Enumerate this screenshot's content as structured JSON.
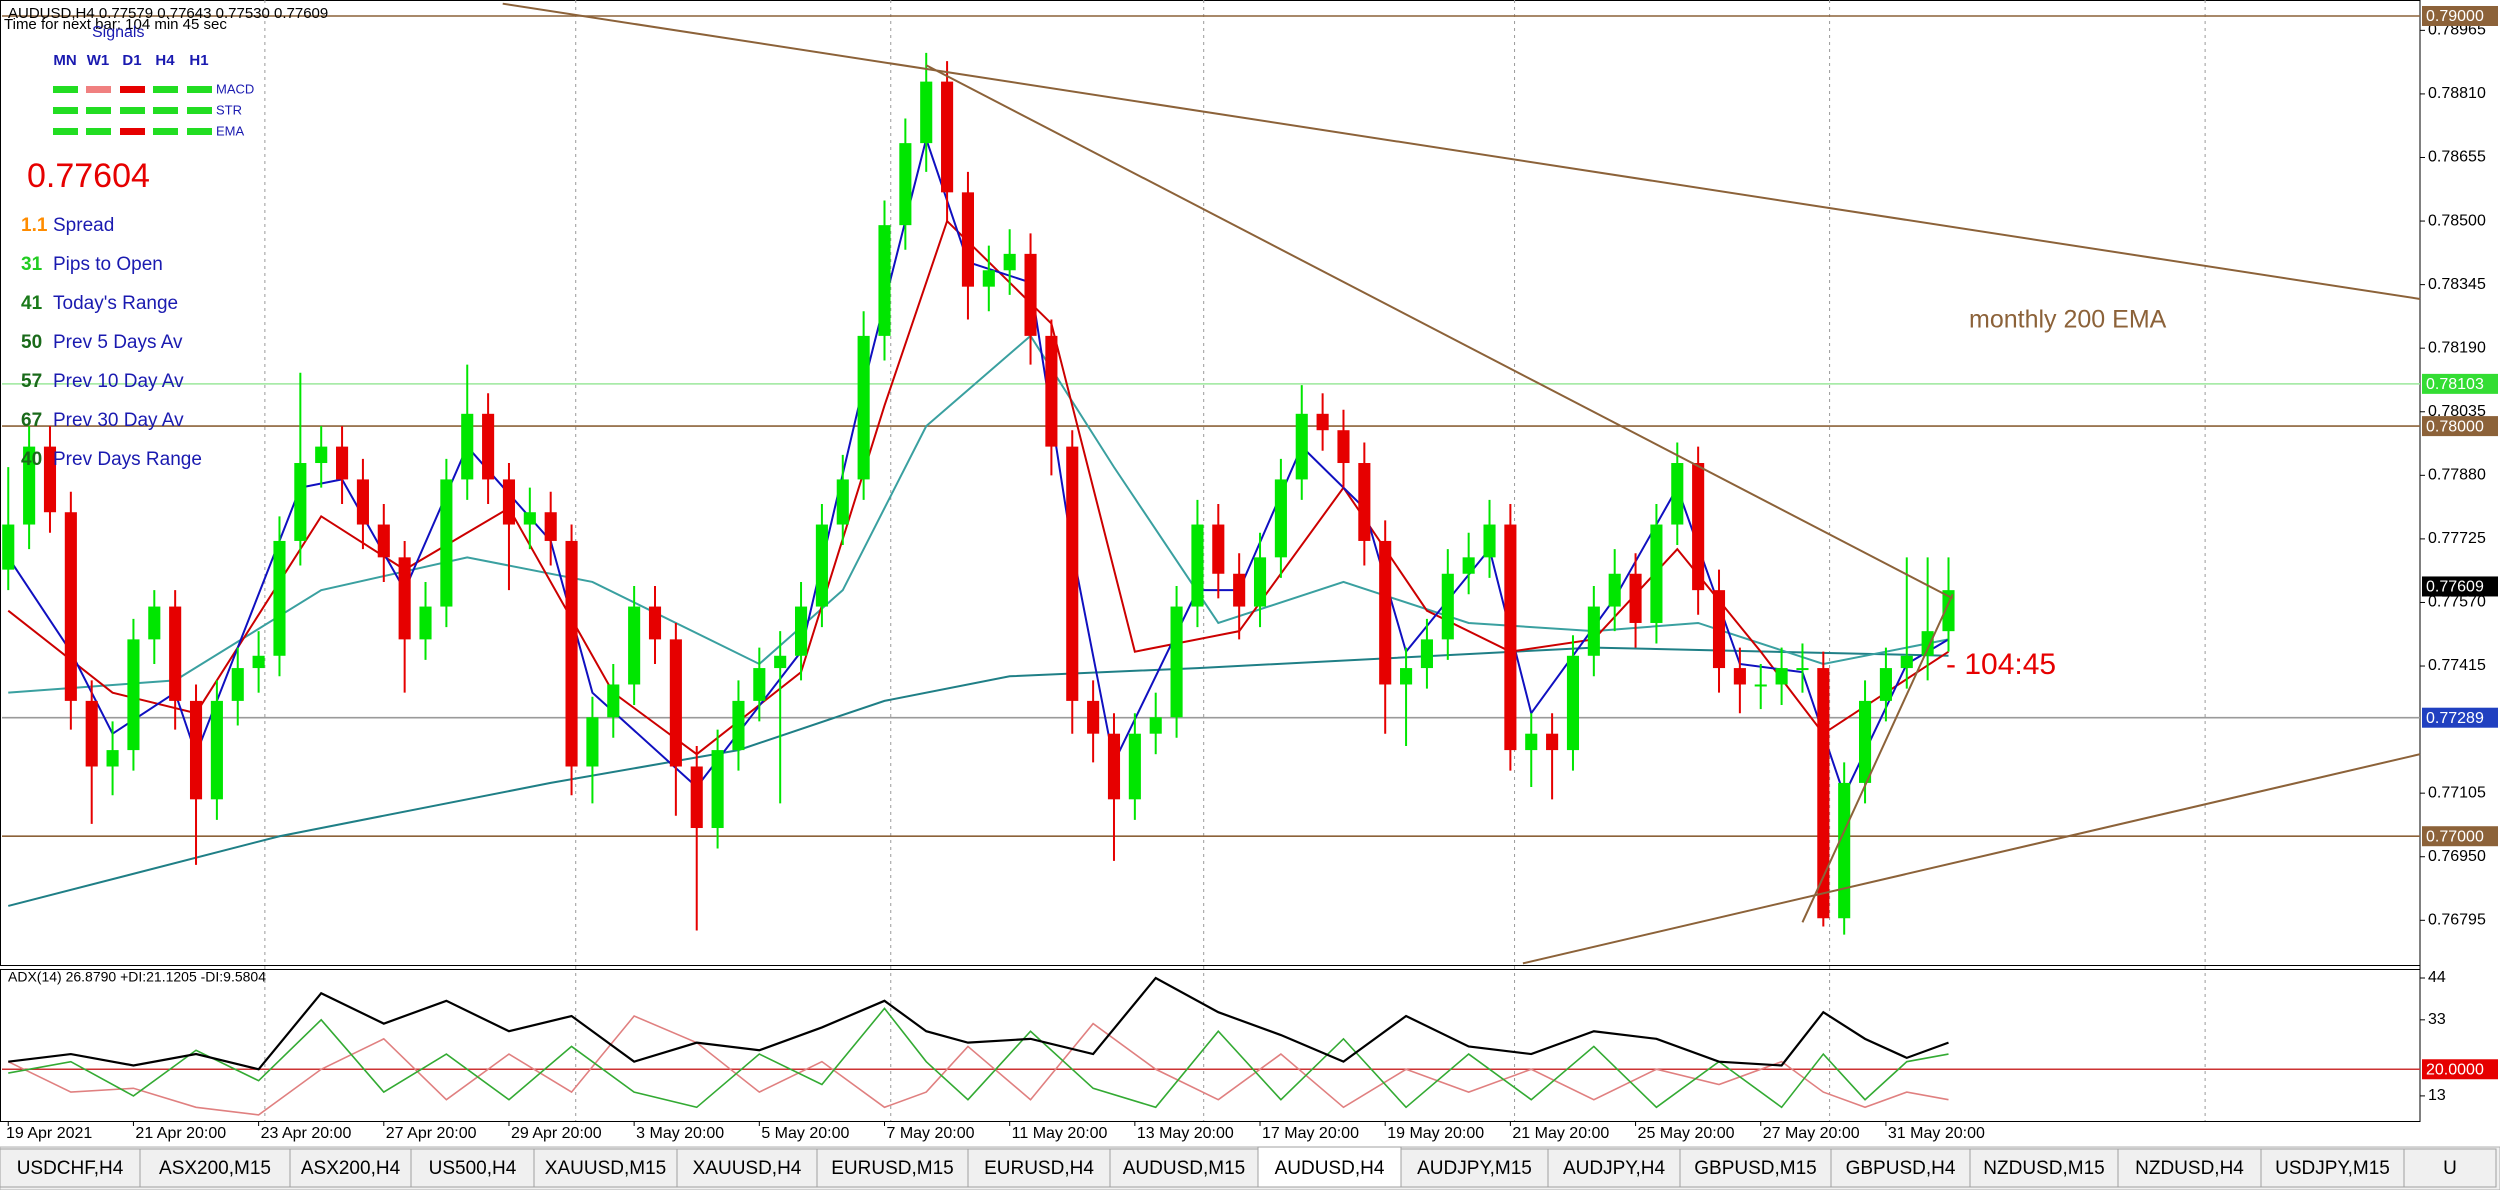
{
  "header": {
    "symbol_line": "AUDUSD,H4  0.77579 0.77643 0.77530 0.77609",
    "timer": "Time for next bar: 104 min 45 sec"
  },
  "panel": {
    "title": "Signals",
    "columns": [
      "MN",
      "W1",
      "D1",
      "H4",
      "H1"
    ],
    "rows": [
      {
        "name": "MACD",
        "colors": [
          "#22dd22",
          "#f08080",
          "#e60000",
          "#22dd22",
          "#22dd22"
        ]
      },
      {
        "name": "STR",
        "colors": [
          "#22dd22",
          "#22dd22",
          "#22dd22",
          "#22dd22",
          "#22dd22"
        ]
      },
      {
        "name": "EMA",
        "colors": [
          "#22dd22",
          "#22dd22",
          "#e60000",
          "#22dd22",
          "#22dd22"
        ]
      }
    ],
    "price": 0.77604,
    "price_color": "#e60000",
    "label_color": "#1a1ab0",
    "stats": [
      {
        "value": 1.1,
        "label": "Spread",
        "color": "#ff8c00"
      },
      {
        "value": 31,
        "label": "Pips to Open",
        "color": "#22cc22"
      },
      {
        "value": 41,
        "label": "Today's Range",
        "color": "#1a7a1a"
      },
      {
        "value": 50,
        "label": "Prev 5 Days Av",
        "color": "#1a6a1a"
      },
      {
        "value": 57,
        "label": "Prev 10 Day Av",
        "color": "#1a6a1a"
      },
      {
        "value": 67,
        "label": "Prev 30 Day Av",
        "color": "#1a6a1a"
      },
      {
        "value": 40,
        "label": "Prev Days Range",
        "color": "#1a6a1a"
      }
    ]
  },
  "chart_data": [
    {
      "type": "candlestick",
      "categories": [
        "19 Apr 2021",
        null,
        null,
        null,
        null,
        null,
        "21 Apr 20:00",
        null,
        null,
        null,
        null,
        null,
        "23 Apr 20:00",
        null,
        null,
        null,
        null,
        null,
        "27 Apr 20:00",
        null,
        null,
        null,
        null,
        null,
        "29 Apr 20:00",
        null,
        null,
        null,
        null,
        null,
        "3 May 20:00",
        null,
        null,
        null,
        null,
        null,
        "5 May 20:00",
        null,
        null,
        null,
        null,
        null,
        "7 May 20:00",
        null,
        null,
        null,
        null,
        null,
        "11 May 20:00",
        null,
        null,
        null,
        null,
        null,
        "13 May 20:00",
        null,
        null,
        null,
        null,
        null,
        "17 May 20:00",
        null,
        null,
        null,
        null,
        null,
        "19 May 20:00",
        null,
        null,
        null,
        null,
        null,
        "21 May 20:00",
        null,
        null,
        null,
        null,
        null,
        "25 May 20:00",
        null,
        null,
        null,
        null,
        null,
        "27 May 20:00",
        null,
        null,
        null,
        null,
        null,
        "31 May 20:00",
        null,
        null,
        null
      ],
      "open": [
        0.7765,
        0.7776,
        0.7795,
        0.7779,
        0.7733,
        0.7717,
        0.7721,
        0.7748,
        0.7756,
        0.7733,
        0.7709,
        0.7733,
        0.7741,
        0.7744,
        0.7772,
        0.7791,
        0.7795,
        0.7787,
        0.7776,
        0.7768,
        0.7748,
        0.7756,
        0.7787,
        0.7803,
        0.7787,
        0.7776,
        0.7779,
        0.7772,
        0.7717,
        0.7729,
        0.7737,
        0.7756,
        0.7748,
        0.7717,
        0.7702,
        0.7721,
        0.7733,
        0.7741,
        0.7744,
        0.7756,
        0.7776,
        0.7787,
        0.7822,
        0.7849,
        0.7869,
        0.7884,
        0.7857,
        0.7834,
        0.7838,
        0.7842,
        0.7822,
        0.7795,
        0.7733,
        0.7725,
        0.7709,
        0.7725,
        0.7729,
        0.7756,
        0.7776,
        0.7764,
        0.7756,
        0.7768,
        0.7787,
        0.7803,
        0.7799,
        0.7791,
        0.7772,
        0.7737,
        0.7741,
        0.7748,
        0.7764,
        0.7768,
        0.7776,
        0.7721,
        0.7725,
        0.7721,
        0.7744,
        0.7756,
        0.7764,
        0.7752,
        0.7776,
        0.7791,
        0.776,
        0.7741,
        0.7737,
        0.7737,
        0.7741,
        0.7741,
        0.768,
        0.7713,
        0.7733,
        0.7741,
        0.7744,
        0.775
      ],
      "high": [
        0.779,
        0.78,
        0.78,
        0.7784,
        0.7738,
        0.7728,
        0.7753,
        0.776,
        0.776,
        0.7737,
        0.7738,
        0.7746,
        0.775,
        0.7778,
        0.7813,
        0.78,
        0.78,
        0.7792,
        0.7781,
        0.7772,
        0.7762,
        0.7792,
        0.7815,
        0.7808,
        0.7791,
        0.7785,
        0.7784,
        0.7776,
        0.7734,
        0.7742,
        0.7761,
        0.7761,
        0.7752,
        0.7722,
        0.7726,
        0.7738,
        0.7746,
        0.775,
        0.7762,
        0.7781,
        0.7793,
        0.7828,
        0.7855,
        0.7875,
        0.7891,
        0.7889,
        0.7862,
        0.7844,
        0.7848,
        0.7847,
        0.7826,
        0.7799,
        0.7738,
        0.773,
        0.773,
        0.7735,
        0.7761,
        0.7782,
        0.7781,
        0.7769,
        0.7774,
        0.7792,
        0.781,
        0.7808,
        0.7804,
        0.7796,
        0.7777,
        0.7746,
        0.7753,
        0.777,
        0.7774,
        0.7782,
        0.7781,
        0.773,
        0.773,
        0.7749,
        0.7761,
        0.777,
        0.7769,
        0.7781,
        0.7796,
        0.7795,
        0.7765,
        0.7746,
        0.7742,
        0.7746,
        0.7747,
        0.7745,
        0.7718,
        0.7738,
        0.7746,
        0.7768,
        0.7768,
        0.7768
      ],
      "low": [
        0.776,
        0.777,
        0.7774,
        0.7726,
        0.7703,
        0.771,
        0.7716,
        0.7742,
        0.7726,
        0.7693,
        0.7704,
        0.7727,
        0.7735,
        0.7739,
        0.7766,
        0.7785,
        0.7781,
        0.777,
        0.7762,
        0.7735,
        0.7743,
        0.7751,
        0.7782,
        0.7781,
        0.776,
        0.777,
        0.7766,
        0.771,
        0.7708,
        0.7724,
        0.7732,
        0.7742,
        0.7705,
        0.7677,
        0.7697,
        0.7716,
        0.7728,
        0.7708,
        0.7738,
        0.7751,
        0.7771,
        0.7782,
        0.7816,
        0.7843,
        0.7862,
        0.785,
        0.7826,
        0.7828,
        0.7832,
        0.7815,
        0.7788,
        0.7725,
        0.7718,
        0.7694,
        0.7704,
        0.772,
        0.7724,
        0.7751,
        0.7758,
        0.7748,
        0.7751,
        0.7763,
        0.7782,
        0.7794,
        0.7785,
        0.7766,
        0.7725,
        0.7722,
        0.7736,
        0.7743,
        0.7759,
        0.7763,
        0.7716,
        0.7712,
        0.7709,
        0.7716,
        0.7739,
        0.775,
        0.7746,
        0.7747,
        0.7771,
        0.7754,
        0.7735,
        0.773,
        0.7731,
        0.7732,
        0.7735,
        0.7678,
        0.7676,
        0.7708,
        0.7728,
        0.7736,
        0.7738,
        0.7745
      ],
      "close": [
        0.7776,
        0.7795,
        0.7779,
        0.7733,
        0.7717,
        0.7721,
        0.7748,
        0.7756,
        0.7733,
        0.7709,
        0.7733,
        0.7741,
        0.7744,
        0.7772,
        0.7791,
        0.7795,
        0.7787,
        0.7776,
        0.7768,
        0.7748,
        0.7756,
        0.7787,
        0.7803,
        0.7787,
        0.7776,
        0.7779,
        0.7772,
        0.7717,
        0.7729,
        0.7737,
        0.7756,
        0.7748,
        0.7717,
        0.7702,
        0.7721,
        0.7733,
        0.7741,
        0.7744,
        0.7756,
        0.7776,
        0.7787,
        0.7822,
        0.7849,
        0.7869,
        0.7884,
        0.7857,
        0.7834,
        0.7838,
        0.7842,
        0.7822,
        0.7795,
        0.7733,
        0.7725,
        0.7709,
        0.7725,
        0.7729,
        0.7756,
        0.7776,
        0.7764,
        0.7756,
        0.7768,
        0.7787,
        0.7803,
        0.7799,
        0.7791,
        0.7772,
        0.7737,
        0.7741,
        0.7748,
        0.7764,
        0.7768,
        0.7776,
        0.7721,
        0.7725,
        0.7721,
        0.7744,
        0.7756,
        0.7764,
        0.7752,
        0.7776,
        0.7791,
        0.776,
        0.7741,
        0.7737,
        0.7737,
        0.7741,
        0.7741,
        0.768,
        0.7713,
        0.7733,
        0.7741,
        0.7744,
        0.775,
        0.776
      ],
      "up_color": "#00e600",
      "down_color": "#e60000",
      "xlim": [
        -0.3,
        115.6
      ],
      "ylim": [
        0.76686,
        0.79039
      ],
      "yticks": [
        0.78965,
        {
          "value": 0.7881,
          "label": "0.78810"
        },
        0.78655,
        {
          "value": 0.785,
          "label": "0.78500"
        },
        0.78345,
        {
          "value": 0.7819,
          "label": "0.78190"
        },
        0.78035,
        {
          "value": 0.7788,
          "label": "0.77880"
        },
        0.77725,
        {
          "value": 0.7757,
          "label": "0.77570"
        },
        0.77415,
        0.77105,
        {
          "value": 0.7695,
          "label": "0.76950"
        },
        0.76795
      ],
      "xgrid": [
        12.3,
        27.2,
        42.3,
        57.3,
        72.2,
        87.3,
        105.3
      ],
      "grid": false,
      "overlays": [
        {
          "color": "#1f7f86",
          "x": [
            0,
            13,
            26,
            35,
            42,
            48,
            57,
            76,
            93
          ],
          "values": [
            0.7683,
            0.77,
            0.7713,
            0.7721,
            0.7733,
            0.7739,
            0.7741,
            0.7746,
            0.7744
          ]
        },
        {
          "color": "#3aa0a0",
          "x": [
            0,
            8,
            15,
            22,
            28,
            36,
            40,
            44,
            49,
            53,
            58,
            64,
            70,
            76,
            81,
            87,
            93
          ],
          "values": [
            0.7735,
            0.7738,
            0.776,
            0.7768,
            0.7762,
            0.7742,
            0.776,
            0.78,
            0.7822,
            0.779,
            0.7752,
            0.7762,
            0.7752,
            0.775,
            0.7752,
            0.7742,
            0.7748
          ]
        },
        {
          "color": "#cc0000",
          "x": [
            0,
            5,
            9,
            15,
            19,
            24,
            29,
            33,
            38,
            42,
            45,
            50,
            54,
            59,
            64,
            68,
            72,
            76,
            80,
            84,
            87,
            90,
            93
          ],
          "values": [
            0.7755,
            0.7735,
            0.773,
            0.7778,
            0.7765,
            0.778,
            0.7735,
            0.772,
            0.774,
            0.7805,
            0.785,
            0.7825,
            0.7745,
            0.775,
            0.7785,
            0.7755,
            0.7745,
            0.7748,
            0.777,
            0.7745,
            0.7725,
            0.7735,
            0.7745
          ]
        },
        {
          "color": "#1010c0",
          "x": [
            0,
            3,
            5,
            8,
            9,
            14,
            16,
            19,
            22,
            26,
            28,
            33,
            38,
            41,
            44,
            46,
            49,
            51,
            53,
            57,
            59,
            62,
            65,
            67,
            71,
            73,
            77,
            80,
            83,
            86,
            88,
            91,
            93
          ],
          "values": [
            0.7768,
            0.7745,
            0.7725,
            0.7735,
            0.772,
            0.7785,
            0.7787,
            0.776,
            0.7795,
            0.7772,
            0.7735,
            0.7712,
            0.7745,
            0.781,
            0.787,
            0.784,
            0.7835,
            0.777,
            0.7718,
            0.776,
            0.776,
            0.7795,
            0.778,
            0.7745,
            0.777,
            0.773,
            0.7758,
            0.7785,
            0.7742,
            0.774,
            0.771,
            0.7742,
            0.7748
          ]
        }
      ],
      "trendlines": [
        {
          "color": "#8c6239",
          "x": [
            23.7,
            115.6
          ],
          "values": [
            0.7903,
            0.7831
          ]
        },
        {
          "color": "#8c6239",
          "x": [
            44,
            93.2
          ],
          "values": [
            0.7888,
            0.7758
          ]
        },
        {
          "color": "#8c6239",
          "x": [
            72.6,
            115.6
          ],
          "values": [
            0.7669,
            0.772
          ]
        },
        {
          "color": "#8c6239",
          "x": [
            86,
            93.2
          ],
          "values": [
            0.7679,
            0.7759
          ]
        }
      ],
      "levels": [
        {
          "value": 0.79,
          "label": "0.79000",
          "color": "#8c6239",
          "line": "#8c6239"
        },
        {
          "value": 0.78103,
          "label": "0.78103",
          "color": "#33dd33",
          "line": "#9be89b"
        },
        {
          "value": 0.78,
          "label": "0.78000",
          "color": "#8c6239",
          "line": "#8c6239"
        },
        {
          "value": 0.77289,
          "label": "0.77289",
          "color": "#2040c0",
          "line": "#9a9a9a"
        },
        {
          "value": 0.77,
          "label": "0.77000",
          "color": "#8c6239",
          "line": "#8c6239"
        }
      ],
      "bid": {
        "value": 0.77609,
        "label": "0.77609",
        "color": "#000000"
      },
      "annotations": [
        {
          "text": "monthly 200 EMA",
          "color": "#8c6239"
        },
        {
          "text": "- 104:45",
          "color": "#e60000"
        }
      ]
    },
    {
      "type": "line",
      "title": "ADX(14) 26.8790 +DI:21.1205 -DI:9.5804",
      "x": [
        0,
        3,
        6,
        9,
        12,
        15,
        18,
        21,
        24,
        27,
        30,
        33,
        36,
        39,
        42,
        44,
        46,
        49,
        52,
        55,
        58,
        61,
        64,
        67,
        70,
        73,
        76,
        79,
        82,
        85,
        87,
        89,
        91,
        93
      ],
      "series": [
        {
          "color": "#e08080",
          "values": [
            22,
            14,
            15,
            10,
            8,
            20,
            28,
            12,
            24,
            14,
            34,
            27,
            14,
            22,
            10,
            14,
            26,
            12,
            32,
            20,
            12,
            24,
            10,
            20,
            14,
            20,
            12,
            20,
            16,
            22,
            14,
            10,
            14,
            12
          ]
        },
        {
          "color": "#33aa33",
          "values": [
            19,
            22,
            13,
            25,
            17,
            33,
            14,
            24,
            12,
            26,
            14,
            10,
            24,
            16,
            36,
            22,
            12,
            30,
            15,
            10,
            30,
            12,
            28,
            10,
            24,
            12,
            26,
            10,
            22,
            10,
            24,
            12,
            22,
            24
          ]
        },
        {
          "color": "#000000",
          "values": [
            22,
            24,
            21,
            24,
            20,
            40,
            32,
            38,
            30,
            34,
            22,
            27,
            25,
            31,
            38,
            30,
            27,
            28,
            24,
            44,
            35,
            29,
            22,
            34,
            26,
            24,
            30,
            28,
            22,
            21,
            35,
            28,
            23,
            27
          ]
        }
      ],
      "xlim": [
        -0.3,
        115.6
      ],
      "ylim": [
        6.4,
        46.1
      ],
      "yticks": [
        44,
        33,
        13
      ],
      "levels": [
        {
          "value": 20,
          "label": "20.0000",
          "color": "#e60000",
          "line": "#cc3333"
        }
      ]
    }
  ],
  "tabs": {
    "items": [
      "USDCHF,H4",
      "ASX200,M15",
      "ASX200,H4",
      "US500,H4",
      "XAUUSD,M15",
      "XAUUSD,H4",
      "EURUSD,M15",
      "EURUSD,H4",
      "AUDUSD,M15",
      "AUDUSD,H4",
      "AUDJPY,M15",
      "AUDJPY,H4",
      "GBPUSD,M15",
      "GBPUSD,H4",
      "NZDUSD,M15",
      "NZDUSD,H4",
      "USDJPY,M15",
      "U"
    ],
    "active": 9
  }
}
